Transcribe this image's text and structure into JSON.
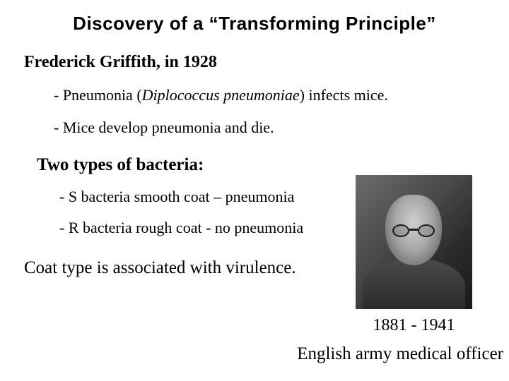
{
  "title": "Discovery of a “Transforming Principle”",
  "subhead": "Frederick Griffith, in 1928",
  "bullets": [
    {
      "prefix": "- Pneumonia (",
      "italic": "Diplococcus pneumoniae",
      "suffix": ") infects mice."
    },
    {
      "text": "- Mice develop pneumonia and die."
    }
  ],
  "subhead2": "Two types of bacteria:",
  "bullets2": [
    "- S bacteria smooth coat – pneumonia",
    "- R bacteria rough coat - no pneumonia"
  ],
  "conclusion": "Coat type is associated with virulence.",
  "photo": {
    "dates": "1881 - 1941",
    "caption": "English army medical officer"
  }
}
